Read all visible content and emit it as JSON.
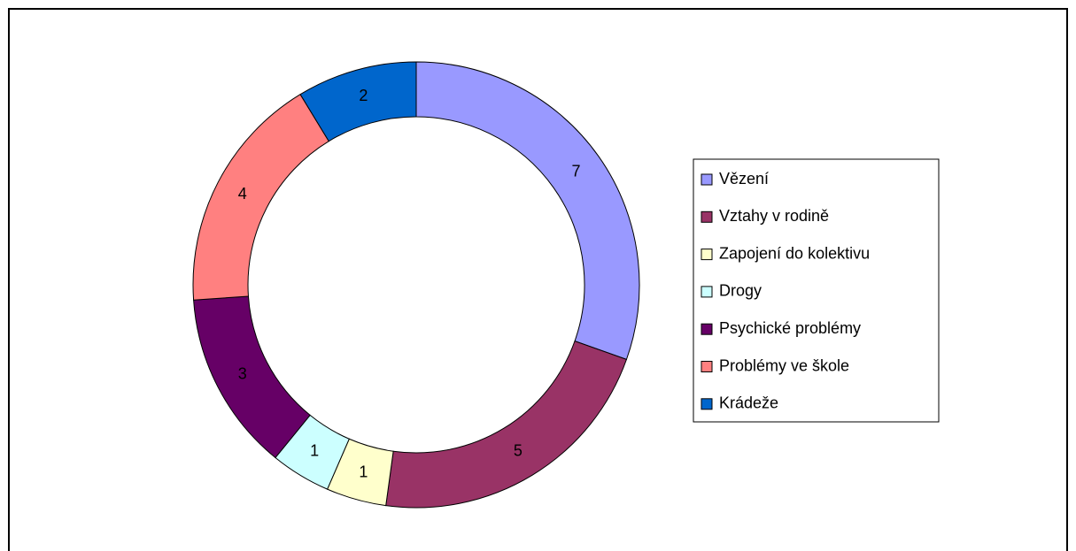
{
  "chart_data": {
    "type": "donut",
    "categories": [
      "Vězení",
      "Vztahy v rodině",
      "Zapojení do kolektivu",
      "Drogy",
      "Psychické problémy",
      "Problémy ve škole",
      "Krádeže"
    ],
    "values": [
      7,
      5,
      1,
      1,
      3,
      4,
      2
    ],
    "colors": [
      "#9999ff",
      "#993366",
      "#ffffcc",
      "#ccffff",
      "#660066",
      "#ff8080",
      "#0066cc"
    ],
    "legend": "right"
  }
}
